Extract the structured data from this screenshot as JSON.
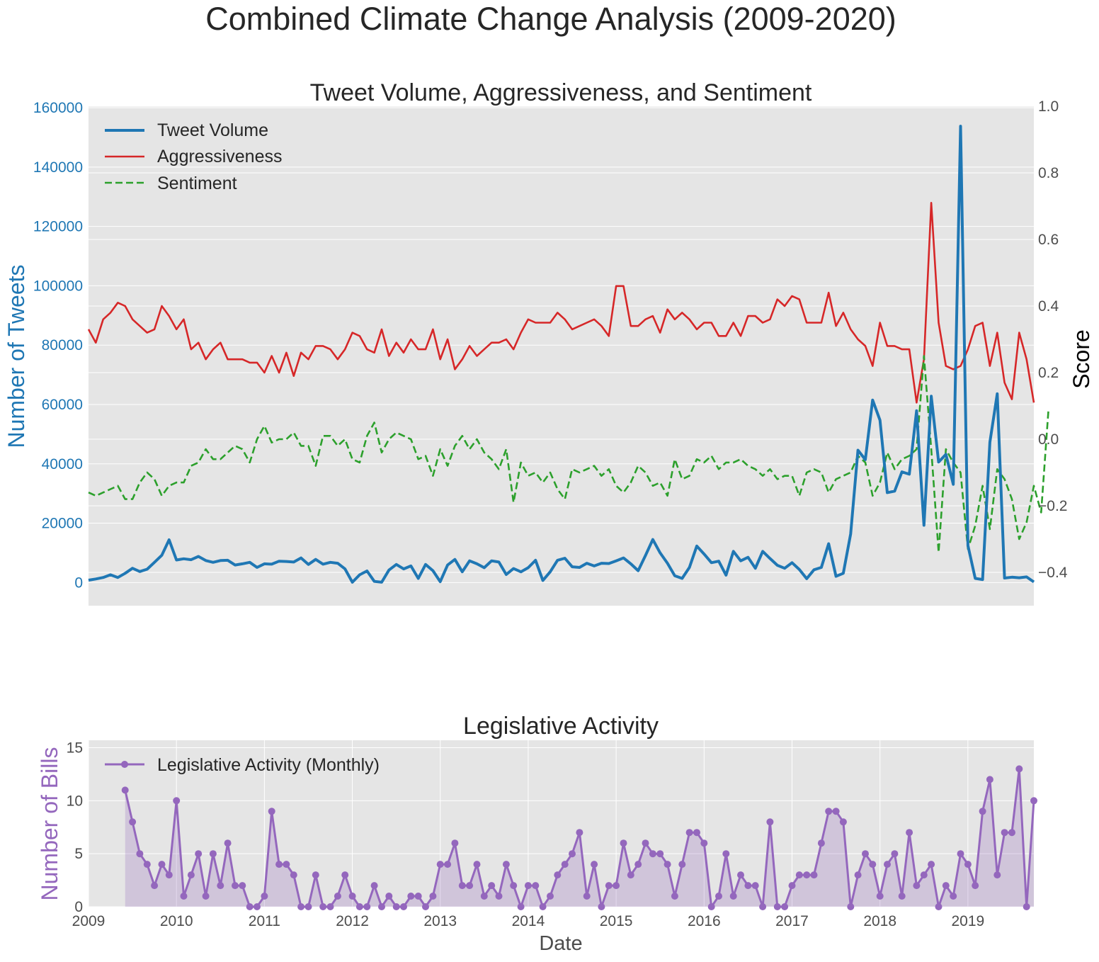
{
  "figure_title": "Combined Climate Change Analysis (2009-2020)",
  "colors": {
    "tweet_volume": "#1f77b4",
    "aggressiveness": "#d62728",
    "sentiment": "#2ca02c",
    "legislative": "#9467bd",
    "axes_bg": "#e5e5e5",
    "grid": "#ffffff",
    "text": "#262626",
    "tick_text": "#4d4d4d"
  },
  "chart_data": [
    {
      "type": "line",
      "title": "Tweet Volume, Aggressiveness, and Sentiment",
      "ylabel": "Number of Tweets",
      "y2label": "Score",
      "ylim": [
        -7800,
        160500
      ],
      "y2lim": [
        -0.5,
        1.0
      ],
      "yticks": [
        0,
        20000,
        40000,
        60000,
        80000,
        100000,
        120000,
        140000,
        160000
      ],
      "y2ticks": [
        -0.4,
        -0.2,
        0.0,
        0.2,
        0.4,
        0.6,
        0.8,
        1.0
      ],
      "y2ticklabels": [
        "−0.4",
        "−0.2",
        "0.0",
        "0.2",
        "0.4",
        "0.6",
        "0.8",
        "1.0"
      ],
      "grid": true,
      "legend_position": "upper-left",
      "x_start": "2009-01",
      "x_end": "2019-10",
      "series": [
        {
          "name": "Tweet Volume",
          "axis": "left",
          "style": "solid-thick",
          "values": [
            800,
            1200,
            1700,
            2600,
            1700,
            3100,
            4800,
            3700,
            4500,
            6800,
            9200,
            14400,
            7600,
            8000,
            7700,
            8800,
            7400,
            6800,
            7400,
            7500,
            5900,
            6300,
            6800,
            5100,
            6300,
            6200,
            7200,
            7100,
            6900,
            8300,
            6100,
            7800,
            6200,
            6800,
            6500,
            4600,
            100,
            2600,
            3900,
            400,
            100,
            4200,
            6100,
            4600,
            5600,
            1400,
            6100,
            4000,
            300,
            5900,
            7800,
            3600,
            7300,
            6300,
            5000,
            7300,
            6900,
            2700,
            4700,
            3600,
            5000,
            7500,
            700,
            3600,
            7500,
            8200,
            5300,
            5100,
            6500,
            5600,
            6500,
            6400,
            7300,
            8300,
            6300,
            4000,
            9100,
            14500,
            10000,
            6500,
            2300,
            1400,
            5100,
            12300,
            9600,
            6700,
            7200,
            2500,
            10500,
            7300,
            8500,
            4800,
            10500,
            8100,
            5800,
            4800,
            6700,
            4400,
            1300,
            4300,
            5100,
            13100,
            2100,
            3100,
            16400,
            44600,
            41400,
            61500,
            54700,
            30300,
            30800,
            37300,
            36500,
            57900,
            19300,
            62800,
            40600,
            43200,
            33100,
            153800,
            12500,
            1400,
            1000,
            47300,
            63600,
            1500,
            1800,
            1600,
            1900,
            200
          ]
        },
        {
          "name": "Aggressiveness",
          "axis": "right",
          "style": "solid",
          "values": [
            0.33,
            0.29,
            0.36,
            0.38,
            0.41,
            0.4,
            0.36,
            0.34,
            0.32,
            0.33,
            0.4,
            0.37,
            0.33,
            0.36,
            0.27,
            0.29,
            0.24,
            0.27,
            0.29,
            0.24,
            0.24,
            0.24,
            0.23,
            0.23,
            0.2,
            0.25,
            0.2,
            0.26,
            0.19,
            0.26,
            0.24,
            0.28,
            0.28,
            0.27,
            0.24,
            0.27,
            0.32,
            0.31,
            0.27,
            0.26,
            0.33,
            0.25,
            0.29,
            0.26,
            0.3,
            0.27,
            0.27,
            0.33,
            0.24,
            0.3,
            0.21,
            0.24,
            0.28,
            0.25,
            0.27,
            0.29,
            0.29,
            0.3,
            0.27,
            0.32,
            0.36,
            0.35,
            0.35,
            0.35,
            0.38,
            0.36,
            0.33,
            0.34,
            0.35,
            0.36,
            0.34,
            0.31,
            0.46,
            0.46,
            0.34,
            0.34,
            0.36,
            0.37,
            0.32,
            0.39,
            0.36,
            0.38,
            0.36,
            0.33,
            0.35,
            0.35,
            0.31,
            0.31,
            0.35,
            0.31,
            0.37,
            0.37,
            0.35,
            0.36,
            0.42,
            0.4,
            0.43,
            0.42,
            0.35,
            0.35,
            0.35,
            0.44,
            0.34,
            0.38,
            0.33,
            0.3,
            0.28,
            0.22,
            0.35,
            0.28,
            0.28,
            0.27,
            0.27,
            0.11,
            0.24,
            0.71,
            0.35,
            0.22,
            0.21,
            0.22,
            0.27,
            0.34,
            0.35,
            0.22,
            0.32,
            0.17,
            0.12,
            0.32,
            0.24,
            0.11
          ]
        },
        {
          "name": "Sentiment",
          "axis": "right",
          "style": "dashed",
          "values": [
            -0.16,
            -0.17,
            -0.16,
            -0.15,
            -0.14,
            -0.18,
            -0.18,
            -0.13,
            -0.1,
            -0.12,
            -0.17,
            -0.14,
            -0.13,
            -0.13,
            -0.08,
            -0.07,
            -0.03,
            -0.06,
            -0.06,
            -0.04,
            -0.02,
            -0.03,
            -0.07,
            0.0,
            0.04,
            -0.01,
            0.0,
            0.0,
            0.02,
            -0.02,
            -0.02,
            -0.08,
            0.01,
            0.01,
            -0.02,
            0.0,
            -0.06,
            -0.07,
            0.01,
            0.05,
            -0.04,
            0.0,
            0.02,
            0.01,
            0.0,
            -0.06,
            -0.05,
            -0.11,
            -0.03,
            -0.08,
            -0.02,
            0.01,
            -0.03,
            0.0,
            -0.04,
            -0.06,
            -0.09,
            -0.03,
            -0.19,
            -0.07,
            -0.11,
            -0.1,
            -0.13,
            -0.1,
            -0.15,
            -0.18,
            -0.09,
            -0.1,
            -0.09,
            -0.08,
            -0.11,
            -0.09,
            -0.14,
            -0.16,
            -0.13,
            -0.08,
            -0.1,
            -0.14,
            -0.13,
            -0.17,
            -0.06,
            -0.12,
            -0.11,
            -0.06,
            -0.07,
            -0.05,
            -0.09,
            -0.07,
            -0.07,
            -0.06,
            -0.08,
            -0.09,
            -0.11,
            -0.09,
            -0.12,
            -0.11,
            -0.11,
            -0.17,
            -0.1,
            -0.09,
            -0.1,
            -0.16,
            -0.12,
            -0.11,
            -0.1,
            -0.05,
            -0.07,
            -0.17,
            -0.13,
            -0.04,
            -0.09,
            -0.06,
            -0.05,
            -0.03,
            0.25,
            -0.03,
            -0.34,
            -0.03,
            -0.07,
            -0.1,
            -0.33,
            -0.26,
            -0.14,
            -0.27,
            -0.09,
            -0.12,
            -0.18,
            -0.3,
            -0.25,
            -0.14,
            -0.22,
            0.09
          ]
        }
      ]
    },
    {
      "type": "area",
      "title": "Legislative Activity",
      "xlabel": "Date",
      "ylabel": "Number of Bills",
      "ylim": [
        0,
        15.7
      ],
      "yticks": [
        0,
        5,
        10,
        15
      ],
      "xticklabels": [
        "2009",
        "2010",
        "2011",
        "2012",
        "2013",
        "2014",
        "2015",
        "2016",
        "2017",
        "2018",
        "2019"
      ],
      "grid": true,
      "legend_position": "upper-left",
      "x_start": "2009-06",
      "x_end": "2019-10",
      "series": [
        {
          "name": "Legislative Activity (Monthly)",
          "style": "line-markers-filled",
          "values": [
            11,
            8,
            5,
            4,
            2,
            4,
            3,
            10,
            1,
            3,
            5,
            1,
            5,
            2,
            6,
            2,
            2,
            0,
            0,
            1,
            9,
            4,
            4,
            3,
            0,
            0,
            3,
            0,
            0,
            1,
            3,
            1,
            0,
            0,
            2,
            0,
            1,
            0,
            0,
            1,
            1,
            0,
            1,
            4,
            4,
            6,
            2,
            2,
            4,
            1,
            2,
            1,
            4,
            2,
            0,
            2,
            2,
            0,
            1,
            3,
            4,
            5,
            7,
            1,
            4,
            0,
            2,
            2,
            6,
            3,
            4,
            6,
            5,
            5,
            4,
            1,
            4,
            7,
            7,
            6,
            0,
            1,
            5,
            1,
            3,
            2,
            2,
            0,
            8,
            0,
            0,
            2,
            3,
            3,
            3,
            6,
            9,
            9,
            8,
            0,
            3,
            5,
            4,
            1,
            4,
            5,
            1,
            7,
            2,
            3,
            4,
            0,
            2,
            1,
            5,
            4,
            2,
            9,
            12,
            3,
            7,
            7,
            13,
            0,
            10
          ]
        }
      ]
    }
  ]
}
